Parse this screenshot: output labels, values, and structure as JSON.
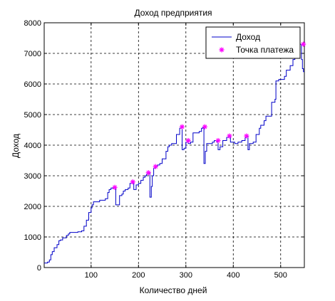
{
  "chart_data": {
    "type": "line",
    "title": "Доход предприятия",
    "xlabel": "Количество дней",
    "ylabel": "Доход",
    "xlim": [
      1,
      550
    ],
    "ylim": [
      0,
      8000
    ],
    "xticks": [
      100,
      200,
      300,
      400,
      500
    ],
    "yticks": [
      0,
      1000,
      2000,
      3000,
      4000,
      5000,
      6000,
      7000,
      8000
    ],
    "grid": true,
    "legend_position": "top-right",
    "colors": {
      "line": "#0000c8",
      "marker": "#ff00ff",
      "grid": "#000000"
    },
    "series": [
      {
        "name": "Доход",
        "kind": "step-line",
        "x": [
          1,
          8,
          12,
          15,
          18,
          22,
          28,
          32,
          35,
          40,
          48,
          52,
          55,
          60,
          72,
          80,
          85,
          90,
          95,
          100,
          102,
          105,
          118,
          122,
          130,
          135,
          138,
          142,
          148,
          150,
          152,
          160,
          165,
          168,
          172,
          178,
          182,
          186,
          190,
          195,
          200,
          205,
          210,
          214,
          217,
          220,
          224,
          227,
          229,
          232,
          236,
          240,
          245,
          250,
          258,
          262,
          265,
          270,
          275,
          280,
          287,
          290,
          292,
          296,
          300,
          305,
          310,
          315,
          322,
          328,
          333,
          336,
          338,
          341,
          344,
          350,
          356,
          360,
          365,
          368,
          372,
          378,
          386,
          390,
          394,
          398,
          403,
          410,
          418,
          425,
          428,
          431,
          434,
          442,
          448,
          455,
          458,
          460,
          465,
          469,
          473,
          477,
          481,
          488,
          490,
          496,
          505,
          508,
          512,
          520,
          526,
          530,
          535,
          540,
          544,
          546,
          548,
          550
        ],
        "y": [
          150,
          180,
          250,
          420,
          520,
          650,
          750,
          880,
          900,
          970,
          1050,
          1100,
          1150,
          1150,
          1170,
          1200,
          1350,
          1550,
          1800,
          1950,
          2050,
          2150,
          2200,
          2200,
          2250,
          2450,
          2550,
          2600,
          2620,
          2600,
          2050,
          2350,
          2400,
          2500,
          2550,
          2600,
          2750,
          2800,
          2550,
          2700,
          2750,
          2850,
          2950,
          3000,
          3050,
          3100,
          2300,
          2650,
          3000,
          3250,
          3300,
          3350,
          3400,
          3550,
          3800,
          3950,
          4000,
          4050,
          4050,
          4350,
          4550,
          4600,
          3850,
          3900,
          4100,
          4050,
          4100,
          4400,
          4400,
          4450,
          4550,
          4580,
          3400,
          3800,
          4050,
          4050,
          4100,
          4150,
          4100,
          3850,
          3950,
          4150,
          4250,
          4300,
          4100,
          4100,
          4050,
          4100,
          4150,
          4250,
          4300,
          3850,
          4050,
          4100,
          4350,
          4550,
          4650,
          4650,
          4800,
          4950,
          4950,
          4950,
          5400,
          5500,
          6100,
          6150,
          6150,
          6250,
          6450,
          6600,
          6800,
          6950,
          7150,
          7300,
          6800,
          6500,
          6400,
          6400
        ]
      },
      {
        "name": "Точка платежа",
        "kind": "markers",
        "marker": "*",
        "x": [
          150,
          188,
          221,
          236,
          292,
          305,
          340,
          368,
          392,
          428,
          548
        ],
        "y": [
          2620,
          2800,
          3100,
          3300,
          4600,
          4150,
          4600,
          4150,
          4300,
          4300,
          7300
        ]
      }
    ]
  }
}
